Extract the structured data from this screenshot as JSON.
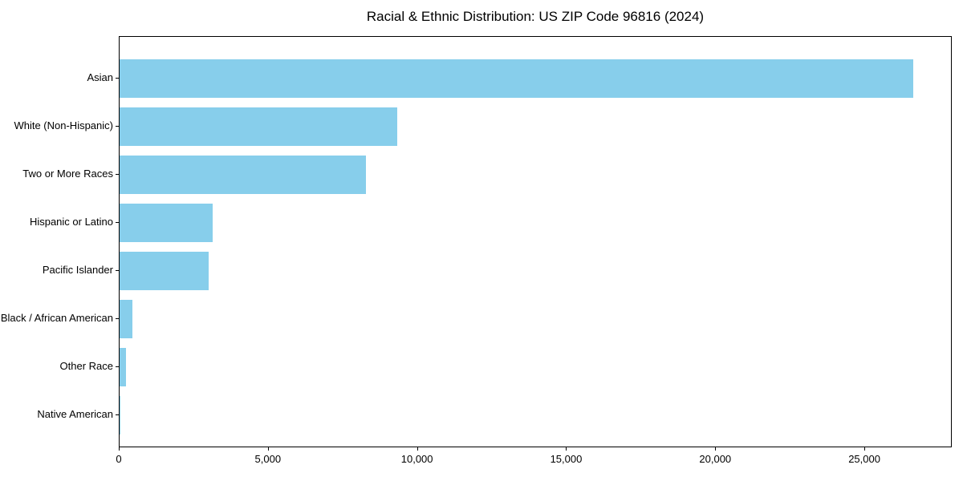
{
  "chart_data": {
    "type": "bar",
    "orientation": "horizontal",
    "title": "Racial & Ethnic Distribution: US ZIP Code 96816 (2024)",
    "categories": [
      "Asian",
      "White (Non-Hispanic)",
      "Two or More Races",
      "Hispanic or Latino",
      "Pacific Islander",
      "Black / African American",
      "Other Race",
      "Native American"
    ],
    "values": [
      26600,
      9300,
      8250,
      3120,
      2990,
      430,
      215,
      40
    ],
    "bar_color": "#87CEEB",
    "axis_color": "#000000",
    "text_color": "#000000",
    "background_color": "#ffffff",
    "xlabel": "",
    "ylabel": "",
    "xlim": [
      0,
      27930
    ],
    "x_ticks": [
      0,
      5000,
      10000,
      15000,
      20000,
      25000
    ],
    "x_tick_labels": [
      "0",
      "5,000",
      "10,000",
      "15,000",
      "20,000",
      "25,000"
    ],
    "grid": false,
    "legend": null,
    "largest_category_on_top": true
  }
}
